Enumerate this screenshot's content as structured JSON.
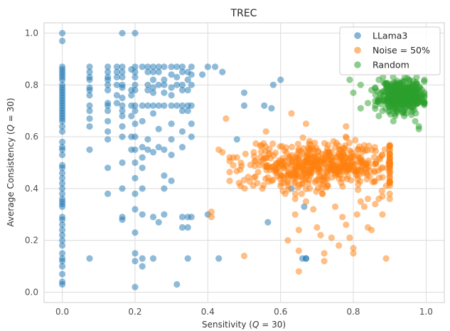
{
  "chart_data": {
    "type": "scatter",
    "title": "TREC",
    "xlabel_main": "Sensitivity (",
    "xlabel_q": "Q",
    "xlabel_rest": " = 30)",
    "ylabel_main": "Average Consistency (",
    "ylabel_q": "Q",
    "ylabel_rest": " = 30)",
    "xlim": [
      -0.05,
      1.05
    ],
    "ylim": [
      -0.04,
      1.04
    ],
    "xticks": [
      0.0,
      0.2,
      0.4,
      0.6,
      0.8,
      1.0
    ],
    "yticks": [
      0.0,
      0.2,
      0.4,
      0.6,
      0.8,
      1.0
    ],
    "xtick_labels": [
      "0.0",
      "0.2",
      "0.4",
      "0.6",
      "0.8",
      "1.0"
    ],
    "ytick_labels": [
      "0.0",
      "0.2",
      "0.4",
      "0.6",
      "0.8",
      "1.0"
    ],
    "grid": true,
    "legend_position": "top-right",
    "series": [
      {
        "name": "LLama3",
        "color": "#1f77b4",
        "points": [
          [
            0,
            1.0
          ],
          [
            0,
            0.97
          ],
          [
            0,
            0.87
          ],
          [
            0,
            0.86
          ],
          [
            0,
            0.85
          ],
          [
            0,
            0.84
          ],
          [
            0,
            0.83
          ],
          [
            0,
            0.82
          ],
          [
            0,
            0.8
          ],
          [
            0,
            0.79
          ],
          [
            0,
            0.78
          ],
          [
            0,
            0.77
          ],
          [
            0,
            0.76
          ],
          [
            0,
            0.75
          ],
          [
            0,
            0.74
          ],
          [
            0,
            0.73
          ],
          [
            0,
            0.72
          ],
          [
            0,
            0.71
          ],
          [
            0,
            0.7
          ],
          [
            0,
            0.69
          ],
          [
            0,
            0.68
          ],
          [
            0,
            0.67
          ],
          [
            0,
            0.66
          ],
          [
            0,
            0.64
          ],
          [
            0,
            0.62
          ],
          [
            0,
            0.58
          ],
          [
            0,
            0.56
          ],
          [
            0,
            0.55
          ],
          [
            0,
            0.53
          ],
          [
            0,
            0.49
          ],
          [
            0,
            0.48
          ],
          [
            0,
            0.46
          ],
          [
            0,
            0.44
          ],
          [
            0,
            0.42
          ],
          [
            0,
            0.4
          ],
          [
            0,
            0.38
          ],
          [
            0,
            0.36
          ],
          [
            0,
            0.35
          ],
          [
            0,
            0.34
          ],
          [
            0,
            0.33
          ],
          [
            0,
            0.29
          ],
          [
            0,
            0.28
          ],
          [
            0,
            0.26
          ],
          [
            0,
            0.24
          ],
          [
            0,
            0.22
          ],
          [
            0,
            0.2
          ],
          [
            0,
            0.18
          ],
          [
            0,
            0.15
          ],
          [
            0,
            0.13
          ],
          [
            0,
            0.12
          ],
          [
            0,
            0.1
          ],
          [
            0,
            0.07
          ],
          [
            0,
            0.04
          ],
          [
            0,
            0.03
          ],
          [
            0.075,
            0.87
          ],
          [
            0.075,
            0.85
          ],
          [
            0.075,
            0.83
          ],
          [
            0.075,
            0.82
          ],
          [
            0.075,
            0.79
          ],
          [
            0.075,
            0.78
          ],
          [
            0.075,
            0.76
          ],
          [
            0.075,
            0.72
          ],
          [
            0.075,
            0.7
          ],
          [
            0.075,
            0.67
          ],
          [
            0.075,
            0.64
          ],
          [
            0.075,
            0.55
          ],
          [
            0.075,
            0.13
          ],
          [
            0.125,
            0.87
          ],
          [
            0.125,
            0.85
          ],
          [
            0.125,
            0.83
          ],
          [
            0.125,
            0.82
          ],
          [
            0.125,
            0.8
          ],
          [
            0.125,
            0.78
          ],
          [
            0.125,
            0.73
          ],
          [
            0.125,
            0.72
          ],
          [
            0.125,
            0.7
          ],
          [
            0.125,
            0.66
          ],
          [
            0.125,
            0.62
          ],
          [
            0.125,
            0.59
          ],
          [
            0.125,
            0.48
          ],
          [
            0.125,
            0.38
          ],
          [
            0.15,
            0.87
          ],
          [
            0.15,
            0.85
          ],
          [
            0.15,
            0.83
          ],
          [
            0.15,
            0.8
          ],
          [
            0.15,
            0.76
          ],
          [
            0.15,
            0.73
          ],
          [
            0.165,
            1.0
          ],
          [
            0.165,
            0.87
          ],
          [
            0.165,
            0.85
          ],
          [
            0.165,
            0.83
          ],
          [
            0.165,
            0.8
          ],
          [
            0.165,
            0.79
          ],
          [
            0.165,
            0.75
          ],
          [
            0.165,
            0.72
          ],
          [
            0.165,
            0.7
          ],
          [
            0.165,
            0.68
          ],
          [
            0.165,
            0.64
          ],
          [
            0.165,
            0.6
          ],
          [
            0.165,
            0.5
          ],
          [
            0.165,
            0.4
          ],
          [
            0.165,
            0.29
          ],
          [
            0.165,
            0.28
          ],
          [
            0.19,
            0.86
          ],
          [
            0.19,
            0.78
          ],
          [
            0.19,
            0.76
          ],
          [
            0.19,
            0.72
          ],
          [
            0.19,
            0.68
          ],
          [
            0.19,
            0.6
          ],
          [
            0.19,
            0.55
          ],
          [
            0.2,
            1.0
          ],
          [
            0.2,
            0.87
          ],
          [
            0.2,
            0.85
          ],
          [
            0.2,
            0.83
          ],
          [
            0.2,
            0.8
          ],
          [
            0.2,
            0.78
          ],
          [
            0.2,
            0.72
          ],
          [
            0.2,
            0.7
          ],
          [
            0.2,
            0.65
          ],
          [
            0.2,
            0.6
          ],
          [
            0.2,
            0.55
          ],
          [
            0.2,
            0.5
          ],
          [
            0.2,
            0.44
          ],
          [
            0.2,
            0.38
          ],
          [
            0.2,
            0.32
          ],
          [
            0.2,
            0.23
          ],
          [
            0.2,
            0.15
          ],
          [
            0.2,
            0.12
          ],
          [
            0.2,
            0.02
          ],
          [
            0.22,
            0.87
          ],
          [
            0.22,
            0.72
          ],
          [
            0.22,
            0.66
          ],
          [
            0.22,
            0.56
          ],
          [
            0.22,
            0.52
          ],
          [
            0.22,
            0.48
          ],
          [
            0.22,
            0.4
          ],
          [
            0.22,
            0.3
          ],
          [
            0.22,
            0.13
          ],
          [
            0.22,
            0.1
          ],
          [
            0.235,
            0.87
          ],
          [
            0.235,
            0.85
          ],
          [
            0.235,
            0.8
          ],
          [
            0.235,
            0.78
          ],
          [
            0.235,
            0.72
          ],
          [
            0.235,
            0.59
          ],
          [
            0.235,
            0.55
          ],
          [
            0.25,
            0.87
          ],
          [
            0.25,
            0.85
          ],
          [
            0.25,
            0.82
          ],
          [
            0.25,
            0.79
          ],
          [
            0.25,
            0.77
          ],
          [
            0.25,
            0.72
          ],
          [
            0.25,
            0.69
          ],
          [
            0.25,
            0.54
          ],
          [
            0.25,
            0.29
          ],
          [
            0.25,
            0.13
          ],
          [
            0.265,
            0.87
          ],
          [
            0.265,
            0.85
          ],
          [
            0.265,
            0.8
          ],
          [
            0.265,
            0.72
          ],
          [
            0.265,
            0.63
          ],
          [
            0.265,
            0.56
          ],
          [
            0.265,
            0.27
          ],
          [
            0.28,
            0.87
          ],
          [
            0.28,
            0.82
          ],
          [
            0.28,
            0.8
          ],
          [
            0.28,
            0.77
          ],
          [
            0.28,
            0.72
          ],
          [
            0.28,
            0.55
          ],
          [
            0.28,
            0.45
          ],
          [
            0.28,
            0.4
          ],
          [
            0.28,
            0.3
          ],
          [
            0.3,
            0.87
          ],
          [
            0.3,
            0.84
          ],
          [
            0.3,
            0.79
          ],
          [
            0.3,
            0.76
          ],
          [
            0.3,
            0.72
          ],
          [
            0.3,
            0.65
          ],
          [
            0.3,
            0.59
          ],
          [
            0.3,
            0.53
          ],
          [
            0.3,
            0.43
          ],
          [
            0.315,
            0.87
          ],
          [
            0.315,
            0.83
          ],
          [
            0.315,
            0.8
          ],
          [
            0.315,
            0.72
          ],
          [
            0.315,
            0.03
          ],
          [
            0.33,
            0.87
          ],
          [
            0.33,
            0.85
          ],
          [
            0.33,
            0.8
          ],
          [
            0.33,
            0.78
          ],
          [
            0.33,
            0.72
          ],
          [
            0.33,
            0.7
          ],
          [
            0.33,
            0.62
          ],
          [
            0.33,
            0.56
          ],
          [
            0.33,
            0.29
          ],
          [
            0.33,
            0.25
          ],
          [
            0.345,
            0.85
          ],
          [
            0.345,
            0.82
          ],
          [
            0.345,
            0.78
          ],
          [
            0.345,
            0.72
          ],
          [
            0.345,
            0.7
          ],
          [
            0.345,
            0.29
          ],
          [
            0.345,
            0.25
          ],
          [
            0.345,
            0.13
          ],
          [
            0.355,
            0.87
          ],
          [
            0.355,
            0.84
          ],
          [
            0.355,
            0.8
          ],
          [
            0.355,
            0.72
          ],
          [
            0.355,
            0.65
          ],
          [
            0.355,
            0.6
          ],
          [
            0.355,
            0.29
          ],
          [
            0.385,
            0.84
          ],
          [
            0.4,
            0.87
          ],
          [
            0.4,
            0.3
          ],
          [
            0.42,
            0.87
          ],
          [
            0.43,
            0.13
          ],
          [
            0.44,
            0.85
          ],
          [
            0.48,
            0.59
          ],
          [
            0.5,
            0.77
          ],
          [
            0.5,
            0.72
          ],
          [
            0.555,
            0.72
          ],
          [
            0.565,
            0.27
          ],
          [
            0.575,
            0.71
          ],
          [
            0.6,
            0.82
          ],
          [
            0.63,
            0.4
          ],
          [
            0.66,
            0.13
          ],
          [
            0.665,
            0.33
          ],
          [
            0.67,
            0.13
          ],
          [
            0.58,
            0.8
          ],
          [
            0.67,
            0.13
          ]
        ]
      },
      {
        "name": "Noise = 50%",
        "color": "#ff7f0e",
        "generate": {
          "center": [
            0.72,
            0.49
          ],
          "spread": [
            0.11,
            0.045
          ],
          "n": 520,
          "seed": 7,
          "xrange": [
            0.46,
            0.9
          ],
          "yrange": [
            0.38,
            0.6
          ]
        },
        "points": [
          [
            0.41,
            0.31
          ],
          [
            0.41,
            0.29
          ],
          [
            0.43,
            0.55
          ],
          [
            0.44,
            0.54
          ],
          [
            0.45,
            0.67
          ],
          [
            0.47,
            0.52
          ],
          [
            0.47,
            0.49
          ],
          [
            0.49,
            0.41
          ],
          [
            0.5,
            0.14
          ],
          [
            0.46,
            0.52
          ],
          [
            0.48,
            0.52
          ],
          [
            0.56,
            0.62
          ],
          [
            0.62,
            0.2
          ],
          [
            0.63,
            0.69
          ],
          [
            0.64,
            0.3
          ],
          [
            0.65,
            0.24
          ],
          [
            0.65,
            0.16
          ],
          [
            0.65,
            0.08
          ],
          [
            0.67,
            0.35
          ],
          [
            0.67,
            0.65
          ],
          [
            0.69,
            0.32
          ],
          [
            0.7,
            0.25
          ],
          [
            0.71,
            0.22
          ],
          [
            0.72,
            0.15
          ],
          [
            0.72,
            0.12
          ],
          [
            0.74,
            0.21
          ],
          [
            0.75,
            0.33
          ],
          [
            0.76,
            0.18
          ],
          [
            0.77,
            0.29
          ],
          [
            0.78,
            0.26
          ],
          [
            0.78,
            0.64
          ],
          [
            0.79,
            0.21
          ],
          [
            0.8,
            0.17
          ],
          [
            0.8,
            0.15
          ],
          [
            0.81,
            0.3
          ],
          [
            0.82,
            0.35
          ],
          [
            0.83,
            0.33
          ],
          [
            0.84,
            0.36
          ],
          [
            0.84,
            0.25
          ],
          [
            0.85,
            0.24
          ],
          [
            0.86,
            0.34
          ],
          [
            0.87,
            0.36
          ],
          [
            0.88,
            0.3
          ],
          [
            0.88,
            0.37
          ],
          [
            0.89,
            0.41
          ],
          [
            0.89,
            0.13
          ],
          [
            0.9,
            0.38
          ],
          [
            0.9,
            0.36
          ],
          [
            0.6,
            0.45
          ],
          [
            0.6,
            0.41
          ],
          [
            0.62,
            0.43
          ],
          [
            0.64,
            0.36
          ],
          [
            0.55,
            0.4
          ],
          [
            0.73,
            0.41
          ],
          [
            0.68,
            0.4
          ]
        ]
      },
      {
        "name": "Random",
        "color": "#2ca02c",
        "generate": {
          "center": [
            0.935,
            0.76
          ],
          "spread": [
            0.03,
            0.03
          ],
          "n": 420,
          "seed": 11,
          "xrange": [
            0.86,
            0.995
          ],
          "yrange": [
            0.68,
            0.83
          ]
        },
        "points": [
          [
            0.79,
            0.82
          ],
          [
            0.8,
            0.77
          ],
          [
            0.82,
            0.8
          ],
          [
            0.82,
            0.71
          ],
          [
            0.84,
            0.73
          ],
          [
            0.85,
            0.78
          ],
          [
            0.86,
            0.72
          ],
          [
            0.87,
            0.68
          ],
          [
            0.88,
            0.74
          ],
          [
            0.88,
            0.7
          ],
          [
            0.9,
            0.7
          ],
          [
            0.91,
            0.66
          ],
          [
            0.92,
            0.7
          ],
          [
            0.94,
            0.68
          ],
          [
            0.97,
            0.66
          ],
          [
            0.98,
            0.64
          ],
          [
            0.98,
            0.63
          ],
          [
            0.86,
            0.79
          ],
          [
            0.87,
            0.82
          ],
          [
            0.89,
            0.79
          ]
        ]
      }
    ]
  }
}
